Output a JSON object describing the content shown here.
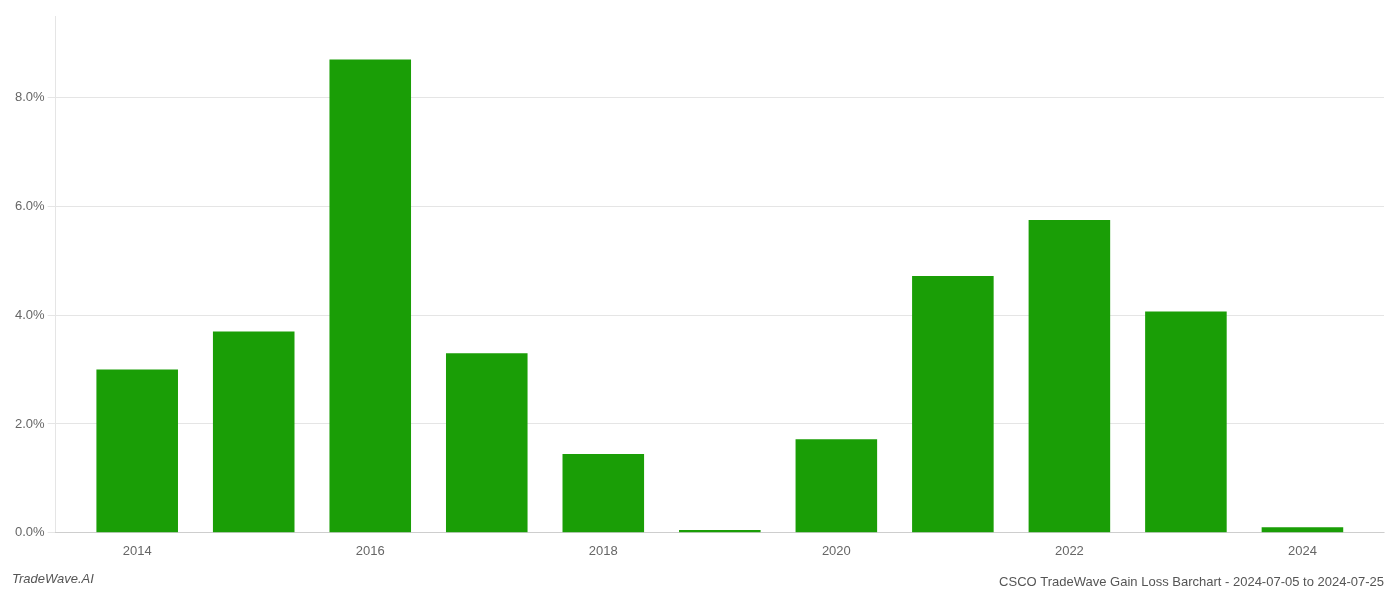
{
  "chart_data": {
    "type": "bar",
    "title": "CSCO TradeWave Gain Loss Barchart - 2024-07-05 to 2024-07-25",
    "annotations": [
      "TradeWave.AI"
    ],
    "x": [
      2014,
      2015,
      2016,
      2017,
      2018,
      2019,
      2020,
      2021,
      2022,
      2023,
      2024
    ],
    "values": [
      0.03,
      0.037,
      0.087,
      0.033,
      0.0145,
      0.0005,
      0.0172,
      0.0472,
      0.0575,
      0.0407,
      0.001
    ],
    "color": "#1a9e06",
    "xlim": [
      2013.3,
      2024.7
    ],
    "xticks": [
      2014,
      2016,
      2018,
      2020,
      2022,
      2024
    ],
    "ylim": [
      0,
      0.095
    ],
    "yticks": [
      {
        "value": 0.0,
        "label": "0.0%"
      },
      {
        "value": 0.02,
        "label": "2.0%"
      },
      {
        "value": 0.04,
        "label": "4.0%"
      },
      {
        "value": 0.06,
        "label": "6.0%"
      },
      {
        "value": 0.08,
        "label": "8.0%"
      }
    ],
    "grid": "y"
  }
}
